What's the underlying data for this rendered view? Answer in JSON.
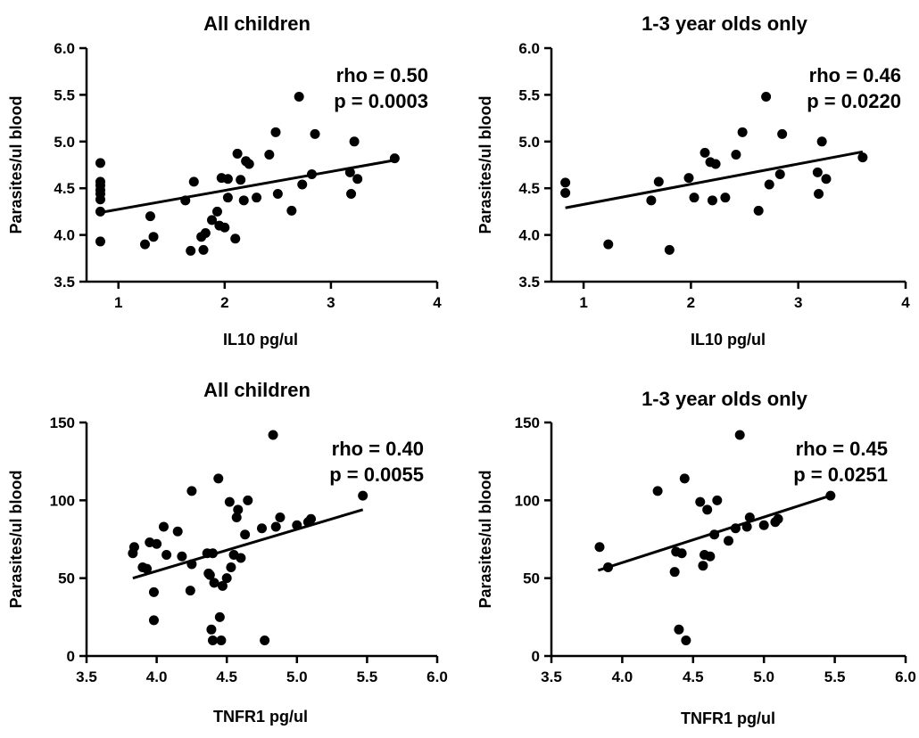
{
  "chart_data": [
    {
      "type": "scatter",
      "title": "All children",
      "xlabel": "IL10 pg/ul",
      "ylabel": "Parasites/ul blood",
      "xlim": [
        0.7,
        4
      ],
      "ylim": [
        3.5,
        6.0
      ],
      "xticks": [
        "1",
        "2",
        "3",
        "4"
      ],
      "yticks": [
        "3.5",
        "4.0",
        "4.5",
        "5.0",
        "5.5",
        "6.0"
      ],
      "stats": {
        "rho": "rho = 0.50",
        "p": "p = 0.0003"
      },
      "regression": {
        "x": [
          0.83,
          3.6
        ],
        "y": [
          4.24,
          4.8
        ]
      },
      "points": [
        [
          0.83,
          4.77
        ],
        [
          0.83,
          4.57
        ],
        [
          0.83,
          4.53
        ],
        [
          0.83,
          4.48
        ],
        [
          0.83,
          4.44
        ],
        [
          0.83,
          4.38
        ],
        [
          0.83,
          4.25
        ],
        [
          0.83,
          3.93
        ],
        [
          1.25,
          3.9
        ],
        [
          1.3,
          4.2
        ],
        [
          1.33,
          3.98
        ],
        [
          1.63,
          4.37
        ],
        [
          1.68,
          3.83
        ],
        [
          1.71,
          4.57
        ],
        [
          1.78,
          3.98
        ],
        [
          1.8,
          3.84
        ],
        [
          1.82,
          4.02
        ],
        [
          1.88,
          4.16
        ],
        [
          1.93,
          4.25
        ],
        [
          1.95,
          4.1
        ],
        [
          1.97,
          4.61
        ],
        [
          2.0,
          4.08
        ],
        [
          2.03,
          4.6
        ],
        [
          2.03,
          4.4
        ],
        [
          2.1,
          3.96
        ],
        [
          2.12,
          4.87
        ],
        [
          2.15,
          4.59
        ],
        [
          2.18,
          4.37
        ],
        [
          2.2,
          4.79
        ],
        [
          2.23,
          4.76
        ],
        [
          2.3,
          4.4
        ],
        [
          2.42,
          4.86
        ],
        [
          2.48,
          5.1
        ],
        [
          2.5,
          4.44
        ],
        [
          2.63,
          4.26
        ],
        [
          2.7,
          5.48
        ],
        [
          2.73,
          4.54
        ],
        [
          2.82,
          4.65
        ],
        [
          2.85,
          5.08
        ],
        [
          3.18,
          4.67
        ],
        [
          3.19,
          4.44
        ],
        [
          3.22,
          5.0
        ],
        [
          3.25,
          4.6
        ],
        [
          3.6,
          4.82
        ]
      ]
    },
    {
      "type": "scatter",
      "title": "1-3 year olds only",
      "xlabel": "IL10 pg/ul",
      "ylabel": "Parasites/ul blood",
      "xlim": [
        0.7,
        4
      ],
      "ylim": [
        3.5,
        6.0
      ],
      "xticks": [
        "1",
        "2",
        "3",
        "4"
      ],
      "yticks": [
        "3.5",
        "4.0",
        "4.5",
        "5.0",
        "5.5",
        "6.0"
      ],
      "stats": {
        "rho": "rho = 0.46",
        "p": "p = 0.0220"
      },
      "regression": {
        "x": [
          0.83,
          3.6
        ],
        "y": [
          4.29,
          4.89
        ]
      },
      "points": [
        [
          0.83,
          4.56
        ],
        [
          0.83,
          4.45
        ],
        [
          1.23,
          3.9
        ],
        [
          1.63,
          4.37
        ],
        [
          1.7,
          4.57
        ],
        [
          1.8,
          3.84
        ],
        [
          1.98,
          4.61
        ],
        [
          2.03,
          4.4
        ],
        [
          2.13,
          4.88
        ],
        [
          2.18,
          4.78
        ],
        [
          2.2,
          4.37
        ],
        [
          2.23,
          4.76
        ],
        [
          2.32,
          4.4
        ],
        [
          2.42,
          4.86
        ],
        [
          2.48,
          5.1
        ],
        [
          2.63,
          4.26
        ],
        [
          2.7,
          5.48
        ],
        [
          2.73,
          4.54
        ],
        [
          2.83,
          4.65
        ],
        [
          2.85,
          5.08
        ],
        [
          3.18,
          4.67
        ],
        [
          3.19,
          4.44
        ],
        [
          3.22,
          5.0
        ],
        [
          3.26,
          4.6
        ],
        [
          3.6,
          4.83
        ]
      ]
    },
    {
      "type": "scatter",
      "title": "All children",
      "xlabel": "TNFR1 pg/ul",
      "ylabel": "Parasites/ul blood",
      "xlim": [
        3.5,
        6.0
      ],
      "ylim": [
        0,
        150
      ],
      "xticks": [
        "3.5",
        "4.0",
        "4.5",
        "5.0",
        "5.5",
        "6.0"
      ],
      "yticks": [
        "0",
        "50",
        "100",
        "150"
      ],
      "stats": {
        "rho": "rho = 0.40",
        "p": "p = 0.0055"
      },
      "regression": {
        "x": [
          3.83,
          5.47
        ],
        "y": [
          50,
          94
        ]
      },
      "points": [
        [
          3.83,
          66
        ],
        [
          3.84,
          70
        ],
        [
          3.9,
          57
        ],
        [
          3.93,
          56
        ],
        [
          3.95,
          73
        ],
        [
          3.98,
          41
        ],
        [
          3.98,
          23
        ],
        [
          4.0,
          72
        ],
        [
          4.05,
          83
        ],
        [
          4.07,
          65
        ],
        [
          4.15,
          80
        ],
        [
          4.18,
          64
        ],
        [
          4.24,
          42
        ],
        [
          4.25,
          106
        ],
        [
          4.25,
          59
        ],
        [
          4.36,
          66
        ],
        [
          4.37,
          53
        ],
        [
          4.38,
          52
        ],
        [
          4.39,
          17
        ],
        [
          4.4,
          66
        ],
        [
          4.4,
          10
        ],
        [
          4.41,
          47
        ],
        [
          4.44,
          114
        ],
        [
          4.45,
          25
        ],
        [
          4.46,
          10
        ],
        [
          4.47,
          45
        ],
        [
          4.5,
          50
        ],
        [
          4.52,
          99
        ],
        [
          4.53,
          57
        ],
        [
          4.55,
          65
        ],
        [
          4.57,
          89
        ],
        [
          4.58,
          94
        ],
        [
          4.6,
          63
        ],
        [
          4.63,
          78
        ],
        [
          4.65,
          100
        ],
        [
          4.75,
          82
        ],
        [
          4.77,
          10
        ],
        [
          4.83,
          142
        ],
        [
          4.85,
          83
        ],
        [
          4.88,
          89
        ],
        [
          5.0,
          84
        ],
        [
          5.08,
          86
        ],
        [
          5.1,
          88
        ],
        [
          5.47,
          103
        ]
      ]
    },
    {
      "type": "scatter",
      "title": "1-3 year olds only",
      "xlabel": "TNFR1 pg/ul",
      "ylabel": "Parasites/ul blood",
      "xlim": [
        3.5,
        6.0
      ],
      "ylim": [
        0,
        150
      ],
      "xticks": [
        "3.5",
        "4.0",
        "4.5",
        "5.0",
        "5.5",
        "6.0"
      ],
      "yticks": [
        "0",
        "50",
        "100",
        "150"
      ],
      "stats": {
        "rho": "rho = 0.45",
        "p": "p = 0.0251"
      },
      "regression": {
        "x": [
          3.83,
          5.47
        ],
        "y": [
          55,
          103
        ]
      },
      "points": [
        [
          3.84,
          70
        ],
        [
          3.9,
          57
        ],
        [
          4.25,
          106
        ],
        [
          4.37,
          54
        ],
        [
          4.38,
          67
        ],
        [
          4.4,
          17
        ],
        [
          4.42,
          66
        ],
        [
          4.44,
          114
        ],
        [
          4.45,
          10
        ],
        [
          4.55,
          99
        ],
        [
          4.57,
          58
        ],
        [
          4.58,
          65
        ],
        [
          4.6,
          94
        ],
        [
          4.62,
          64
        ],
        [
          4.65,
          78
        ],
        [
          4.67,
          100
        ],
        [
          4.75,
          74
        ],
        [
          4.8,
          82
        ],
        [
          4.83,
          142
        ],
        [
          4.88,
          83
        ],
        [
          4.9,
          89
        ],
        [
          5.0,
          84
        ],
        [
          5.08,
          86
        ],
        [
          5.1,
          88
        ],
        [
          5.47,
          103
        ]
      ]
    }
  ]
}
